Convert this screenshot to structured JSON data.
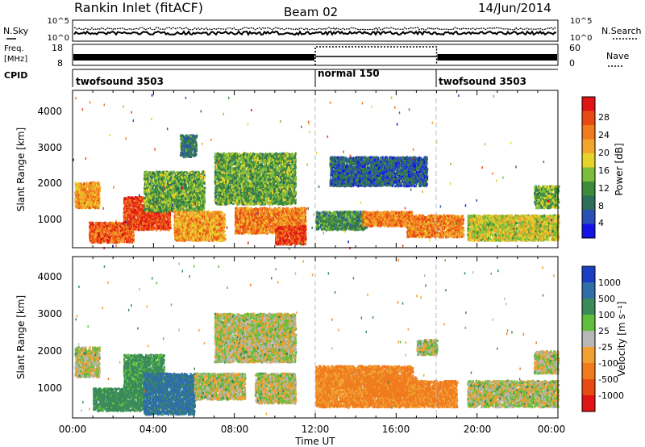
{
  "header": {
    "title": "Rankin Inlet (fitACF)",
    "beam": "Beam 02",
    "date": "14/Jun/2014"
  },
  "status_panels": {
    "nsky_label": "N.Sky",
    "nsearch_label": "N.Search",
    "noise_ticks": [
      "10^5",
      "10^0"
    ],
    "freq_label_1": "Freq.",
    "freq_label_2": "[MHz]",
    "freq_ticks": [
      "18",
      "8"
    ],
    "nave_ticks": [
      "60",
      "0"
    ],
    "nave_label": "Nave",
    "cpid_label": "CPID",
    "cpid_segments": [
      {
        "label": "twofsound 3503",
        "start_hour": 0,
        "end_hour": 12
      },
      {
        "label": "normal 150",
        "start_hour": 12,
        "end_hour": 18
      },
      {
        "label": "twofsound 3503",
        "start_hour": 18,
        "end_hour": 24
      }
    ]
  },
  "axes": {
    "ylabel": "Slant Range [km]",
    "xlabel": "Time UT",
    "xticks": [
      "00:00",
      "04:00",
      "08:00",
      "12:00",
      "16:00",
      "20:00",
      "00:00"
    ],
    "yticks": [
      "1000",
      "2000",
      "3000",
      "4000"
    ]
  },
  "colorbars": {
    "power": {
      "label": "Power [dB]",
      "ticks": [
        "4",
        "8",
        "12",
        "16",
        "20",
        "24",
        "28"
      ],
      "colors": [
        "#1414e6",
        "#2a4fb5",
        "#2f6e5a",
        "#3c8c3c",
        "#7dbd3c",
        "#e6d32a",
        "#f2a52a",
        "#f07a1e",
        "#e84a14",
        "#e01414"
      ]
    },
    "velocity": {
      "label": "Velocity [m s⁻¹]",
      "ticks": [
        "1000",
        "500",
        "100",
        "25",
        "-25",
        "-100",
        "-500",
        "-1000"
      ],
      "colors": [
        "#1b3fc4",
        "#2f6ea8",
        "#3a8a5a",
        "#5fbf3a",
        "#b7b7b7",
        "#f0a030",
        "#f07a1e",
        "#e84a14",
        "#e01414"
      ]
    }
  },
  "chart_data": [
    {
      "type": "heatmap",
      "title": "Power",
      "xlabel": "Time UT",
      "ylabel": "Slant Range [km]",
      "xlim": [
        0,
        24
      ],
      "ylim": [
        180,
        4500
      ],
      "colorbar_range": [
        0,
        30
      ],
      "blobs": [
        {
          "t0": 0.1,
          "t1": 1.3,
          "r0": 1300,
          "r1": 2000,
          "v": 20
        },
        {
          "t0": 0.8,
          "t1": 3.0,
          "r0": 350,
          "r1": 900,
          "v": 24
        },
        {
          "t0": 2.5,
          "t1": 4.8,
          "r0": 700,
          "r1": 1600,
          "v": 26
        },
        {
          "t0": 3.5,
          "t1": 6.5,
          "r0": 1200,
          "r1": 2300,
          "v": 12
        },
        {
          "t0": 5.0,
          "t1": 7.5,
          "r0": 400,
          "r1": 1200,
          "v": 20
        },
        {
          "t0": 5.3,
          "t1": 6.1,
          "r0": 2700,
          "r1": 3300,
          "v": 8
        },
        {
          "t0": 7.0,
          "t1": 11.0,
          "r0": 1400,
          "r1": 2800,
          "v": 12
        },
        {
          "t0": 8.0,
          "t1": 11.5,
          "r0": 600,
          "r1": 1300,
          "v": 22
        },
        {
          "t0": 10.0,
          "t1": 11.5,
          "r0": 300,
          "r1": 800,
          "v": 26
        },
        {
          "t0": 12.0,
          "t1": 14.5,
          "r0": 700,
          "r1": 1200,
          "v": 10
        },
        {
          "t0": 14.3,
          "t1": 16.8,
          "r0": 800,
          "r1": 1200,
          "v": 22
        },
        {
          "t0": 12.7,
          "t1": 17.5,
          "r0": 1900,
          "r1": 2700,
          "v": 6
        },
        {
          "t0": 16.5,
          "t1": 19.3,
          "r0": 500,
          "r1": 1100,
          "v": 22
        },
        {
          "t0": 19.5,
          "t1": 24.0,
          "r0": 400,
          "r1": 1100,
          "v": 16
        },
        {
          "t0": 22.8,
          "t1": 24.0,
          "r0": 1300,
          "r1": 1900,
          "v": 12
        }
      ]
    },
    {
      "type": "heatmap",
      "title": "Velocity",
      "xlabel": "Time UT",
      "ylabel": "Slant Range [km]",
      "xlim": [
        0,
        24
      ],
      "ylim": [
        180,
        4500
      ],
      "colorbar_range": [
        -1000,
        1000
      ],
      "blobs": [
        {
          "t0": 0.1,
          "t1": 1.3,
          "r0": 1300,
          "r1": 2100,
          "v": 0
        },
        {
          "t0": 1.0,
          "t1": 3.5,
          "r0": 400,
          "r1": 1000,
          "v": 150
        },
        {
          "t0": 2.5,
          "t1": 4.5,
          "r0": 1000,
          "r1": 1900,
          "v": 120
        },
        {
          "t0": 3.5,
          "t1": 6.0,
          "r0": 300,
          "r1": 1400,
          "v": 300
        },
        {
          "t0": 6.0,
          "t1": 8.5,
          "r0": 700,
          "r1": 1400,
          "v": 0
        },
        {
          "t0": 7.0,
          "t1": 11.0,
          "r0": 1700,
          "r1": 3000,
          "v": 0
        },
        {
          "t0": 9.0,
          "t1": 11.0,
          "r0": 600,
          "r1": 1400,
          "v": 0
        },
        {
          "t0": 12.0,
          "t1": 16.8,
          "r0": 500,
          "r1": 1600,
          "v": -180
        },
        {
          "t0": 14.5,
          "t1": 17.0,
          "r0": 800,
          "r1": 1300,
          "v": -220
        },
        {
          "t0": 16.5,
          "t1": 19.0,
          "r0": 500,
          "r1": 1200,
          "v": -180
        },
        {
          "t0": 17.0,
          "t1": 18.0,
          "r0": 1900,
          "r1": 2300,
          "v": 0
        },
        {
          "t0": 19.5,
          "t1": 24.0,
          "r0": 500,
          "r1": 1200,
          "v": 0
        },
        {
          "t0": 22.8,
          "t1": 24.0,
          "r0": 1400,
          "r1": 2000,
          "v": 0
        }
      ]
    }
  ]
}
